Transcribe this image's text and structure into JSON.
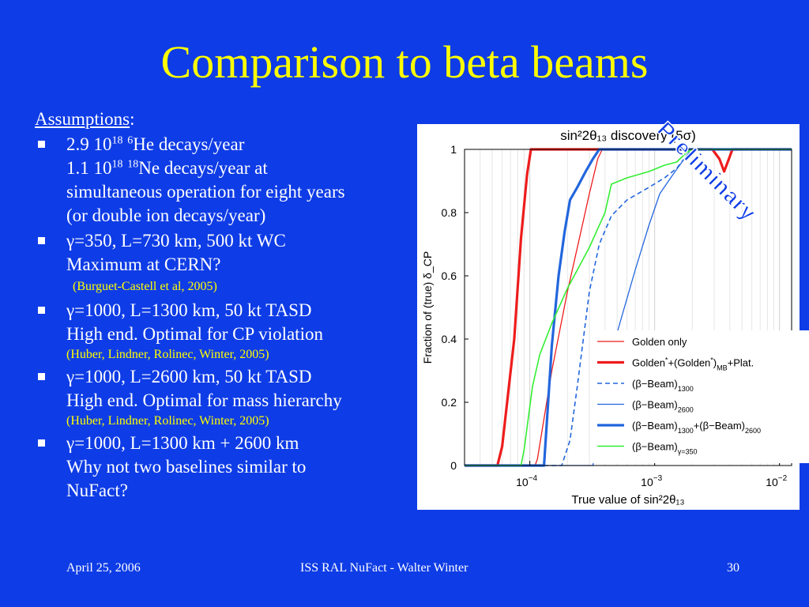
{
  "slide": {
    "title": "Comparison to beta beams",
    "watermark": "Preliminary",
    "assumptions_label": "Assumptions",
    "assumptions_colon": ":",
    "bullets": [
      {
        "lines": [
          {
            "pre": "2.9 10",
            "sup1": "18",
            "mid": " ",
            "sup2": "6",
            "post": "He decays/year"
          },
          {
            "pre": "1.1 10",
            "sup1": "18",
            "mid": " ",
            "sup2": "18",
            "post": "Ne decays/year at"
          },
          {
            "text": "simultaneous operation for eight years"
          },
          {
            "text": "(or double ion decays/year)"
          }
        ]
      },
      {
        "lines": [
          {
            "text": " γ=350, L=730 km, 500 kt WC"
          },
          {
            "text": "Maximum at CERN?"
          }
        ],
        "ref": "(Burguet-Castell et al, 2005)",
        "ref_indented": true
      },
      {
        "lines": [
          {
            "text": " γ=1000, L=1300 km, 50 kt TASD"
          },
          {
            "text": "High end. Optimal for CP violation"
          }
        ],
        "ref": "(Huber, Lindner, Rolinec, Winter, 2005)"
      },
      {
        "lines": [
          {
            "text": " γ=1000, L=2600 km, 50 kt TASD"
          },
          {
            "text": "High end. Optimal for mass hierarchy"
          }
        ],
        "ref": "(Huber, Lindner, Rolinec, Winter, 2005)"
      },
      {
        "lines": [
          {
            "text": "γ=1000, L=1300 km + 2600 km"
          },
          {
            "text": "Why not two baselines similar to"
          },
          {
            "text": "NuFact?"
          }
        ]
      }
    ]
  },
  "footer": {
    "date": "April 25, 2006",
    "center": "ISS RAL NuFact - Walter Winter",
    "page": "30"
  },
  "colors": {
    "background": "#0e3ce6",
    "title": "#ffff00",
    "reference": "#ffff00",
    "red": "#ee1c1c",
    "blue": "#2266dd",
    "green": "#33ee33"
  },
  "chart_data": {
    "type": "line",
    "title": "sin²2θ₁₃ discovery (5σ)",
    "xlabel": "True value of sin²2θ₁₃",
    "ylabel": "Fraction of (true) δ_CP",
    "xscale": "log",
    "xlim": [
      3e-05,
      0.0125
    ],
    "ylim": [
      0,
      1
    ],
    "x_ticks": [
      {
        "v": 0.0001,
        "base": "10",
        "exp": "−4"
      },
      {
        "v": 0.001,
        "base": "10",
        "exp": "−3"
      },
      {
        "v": 0.01,
        "base": "10",
        "exp": "−2"
      }
    ],
    "y_ticks": [
      {
        "v": 0,
        "label": "0"
      },
      {
        "v": 0.2,
        "label": "0.2"
      },
      {
        "v": 0.4,
        "label": "0.4"
      },
      {
        "v": 0.6,
        "label": "0.6"
      },
      {
        "v": 0.8,
        "label": "0.8"
      },
      {
        "v": 1,
        "label": "1"
      }
    ],
    "grid": "vertical",
    "legend_position": "right, partly outside",
    "series": [
      {
        "name": "Golden only",
        "color": "#ee1c1c",
        "width": 1.3,
        "dash": "",
        "points": [
          [
            3e-05,
            0
          ],
          [
            0.00011,
            0
          ],
          [
            0.000115,
            0.02
          ],
          [
            0.00015,
            0.3
          ],
          [
            0.0002,
            0.55
          ],
          [
            0.00025,
            0.72
          ],
          [
            0.0003,
            0.86
          ],
          [
            0.00035,
            0.97
          ],
          [
            0.00038,
            1
          ],
          [
            0.0125,
            1
          ]
        ]
      },
      {
        "name": "Golden*+(Golden*)MB+Plat.",
        "color": "#ee1c1c",
        "width": 3.2,
        "dash": "",
        "points": [
          [
            3e-05,
            0
          ],
          [
            5.5e-05,
            0
          ],
          [
            6e-05,
            0.06
          ],
          [
            7.5e-05,
            0.4
          ],
          [
            8.5e-05,
            0.72
          ],
          [
            9.5e-05,
            0.92
          ],
          [
            0.000102,
            1
          ],
          [
            0.0029,
            1
          ],
          [
            0.0033,
            0.97
          ],
          [
            0.0036,
            0.93
          ],
          [
            0.0042,
            1
          ],
          [
            0.0125,
            1
          ]
        ]
      },
      {
        "name": "(β-Beam)1300",
        "color": "#2266dd",
        "width": 1.6,
        "dash": "6,4",
        "points": [
          [
            3e-05,
            0
          ],
          [
            0.00018,
            0
          ],
          [
            0.00021,
            0.08
          ],
          [
            0.00024,
            0.25
          ],
          [
            0.0003,
            0.55
          ],
          [
            0.00036,
            0.7
          ],
          [
            0.00045,
            0.79
          ],
          [
            0.0006,
            0.84
          ],
          [
            0.0009,
            0.88
          ],
          [
            0.0012,
            0.91
          ],
          [
            0.0015,
            0.94
          ],
          [
            0.0018,
            0.98
          ],
          [
            0.002,
            1
          ],
          [
            0.0125,
            1
          ]
        ]
      },
      {
        "name": "(β-Beam)2600",
        "color": "#2266dd",
        "width": 1.3,
        "dash": "",
        "points": [
          [
            3e-05,
            0
          ],
          [
            0.00032,
            0
          ],
          [
            0.00035,
            0.1
          ],
          [
            0.0004,
            0.25
          ],
          [
            0.0005,
            0.42
          ],
          [
            0.0007,
            0.62
          ],
          [
            0.0009,
            0.76
          ],
          [
            0.0011,
            0.86
          ],
          [
            0.0014,
            0.92
          ],
          [
            0.0018,
            0.98
          ],
          [
            0.0021,
            1
          ],
          [
            0.0125,
            1
          ]
        ]
      },
      {
        "name": "(β-Beam)1300+(β-Beam)2600",
        "color": "#2266dd",
        "width": 3.2,
        "dash": "",
        "points": [
          [
            3e-05,
            0
          ],
          [
            0.00013,
            0
          ],
          [
            0.000135,
            0.1
          ],
          [
            0.00015,
            0.38
          ],
          [
            0.00017,
            0.6
          ],
          [
            0.00019,
            0.74
          ],
          [
            0.00021,
            0.84
          ],
          [
            0.00024,
            0.88
          ],
          [
            0.00028,
            0.93
          ],
          [
            0.00032,
            0.97
          ],
          [
            0.00036,
            1
          ],
          [
            0.0125,
            1
          ]
        ]
      },
      {
        "name": "(β-Beam)γ=350",
        "color": "#33ee33",
        "width": 1.6,
        "dash": "",
        "points": [
          [
            3e-05,
            0
          ],
          [
            8.5e-05,
            0
          ],
          [
            9e-05,
            0.05
          ],
          [
            0.000105,
            0.25
          ],
          [
            0.00012,
            0.35
          ],
          [
            0.00015,
            0.45
          ],
          [
            0.0002,
            0.56
          ],
          [
            0.0003,
            0.69
          ],
          [
            0.0004,
            0.8
          ],
          [
            0.00045,
            0.89
          ],
          [
            0.0006,
            0.91
          ],
          [
            0.0009,
            0.93
          ],
          [
            0.0012,
            0.95
          ],
          [
            0.0015,
            0.96
          ],
          [
            0.0018,
            0.99
          ],
          [
            0.002,
            1
          ],
          [
            0.0125,
            1
          ]
        ]
      }
    ]
  }
}
